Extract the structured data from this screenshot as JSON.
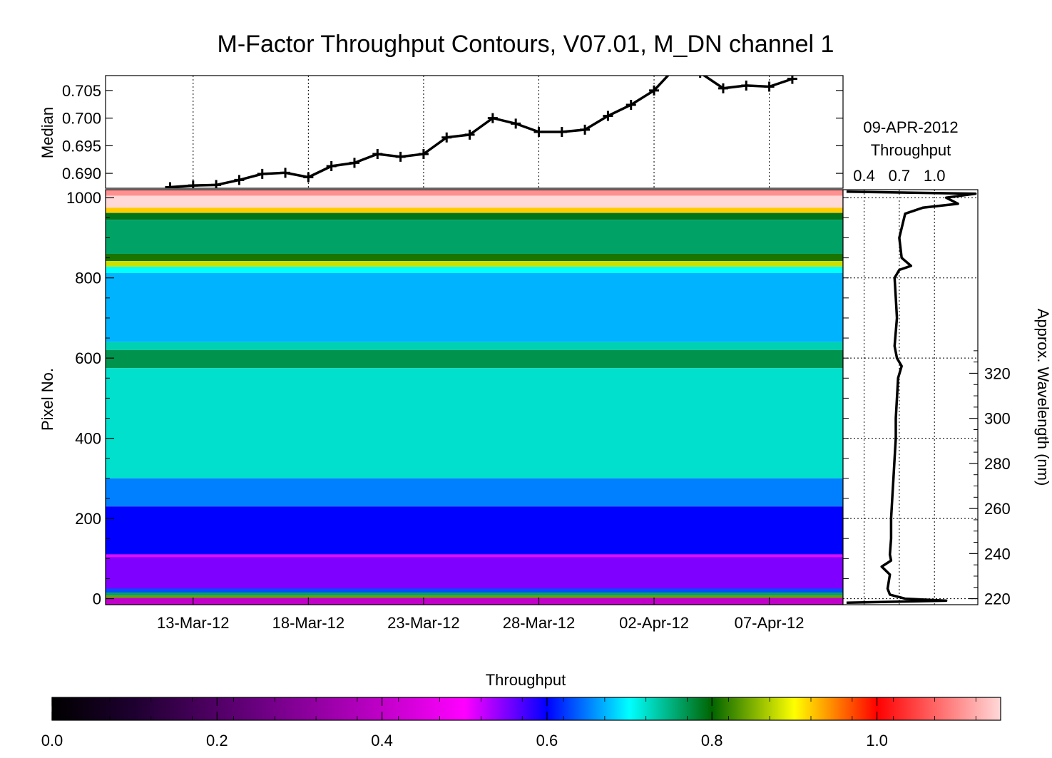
{
  "chart_data": [
    {
      "id": "median",
      "type": "line",
      "title": "M-Factor Throughput Contours, V07.01, M_DN channel 1",
      "ylabel": "Median",
      "ylim": [
        0.6873,
        0.7077
      ],
      "yticks": [
        "0.690",
        "0.695",
        "0.700",
        "0.705"
      ],
      "x_ticks": [
        "13-Mar-12",
        "18-Mar-12",
        "23-Mar-12",
        "28-Mar-12",
        "02-Apr-12",
        "07-Apr-12"
      ],
      "x_tick_days": [
        13,
        18,
        23,
        28,
        33,
        38
      ],
      "xlim_days": [
        9.2,
        41.2
      ],
      "grid": "dotted vertical at date ticks",
      "x_day": [
        12,
        13,
        14,
        15,
        16,
        17,
        18,
        19,
        20,
        21,
        22,
        23,
        24,
        25,
        26,
        27,
        28,
        29,
        30,
        31,
        32,
        33,
        34,
        35,
        36,
        37,
        38,
        39
      ],
      "values": [
        0.6875,
        0.6878,
        0.6879,
        0.6888,
        0.6899,
        0.6901,
        0.6893,
        0.6913,
        0.6919,
        0.6935,
        0.693,
        0.6935,
        0.6965,
        0.697,
        0.7,
        0.699,
        0.6975,
        0.6975,
        0.6979,
        0.7004,
        0.7024,
        0.705,
        0.7095,
        0.7082,
        0.7054,
        0.7059,
        0.7057,
        0.7071
      ]
    },
    {
      "id": "contours",
      "type": "heatmap",
      "ylabel": "Pixel No.",
      "ylim": [
        -15,
        1020
      ],
      "yticks": [
        "0",
        "200",
        "400",
        "600",
        "800",
        "1000"
      ],
      "x_ticks": [
        "13-Mar-12",
        "18-Mar-12",
        "23-Mar-12",
        "28-Mar-12",
        "02-Apr-12",
        "07-Apr-12"
      ],
      "value_range": [
        0.0,
        1.15
      ],
      "bands": [
        {
          "pixel": [
            1005,
            1020
          ],
          "value": 1.1
        },
        {
          "pixel": [
            975,
            1005
          ],
          "value": 1.15
        },
        {
          "pixel": [
            962,
            975
          ],
          "value": 0.92
        },
        {
          "pixel": [
            945,
            962
          ],
          "value": 0.79
        },
        {
          "pixel": [
            860,
            945
          ],
          "value": 0.76
        },
        {
          "pixel": [
            842,
            860
          ],
          "value": 0.81
        },
        {
          "pixel": [
            828,
            842
          ],
          "value": 0.88
        },
        {
          "pixel": [
            812,
            828
          ],
          "value": 0.7
        },
        {
          "pixel": [
            640,
            812
          ],
          "value": 0.67
        },
        {
          "pixel": [
            620,
            640
          ],
          "value": 0.73
        },
        {
          "pixel": [
            575,
            620
          ],
          "value": 0.77
        },
        {
          "pixel": [
            300,
            575
          ],
          "value": 0.72
        },
        {
          "pixel": [
            230,
            300
          ],
          "value": 0.65
        },
        {
          "pixel": [
            110,
            230
          ],
          "value": 0.6
        },
        {
          "pixel": [
            104,
            110
          ],
          "value": 0.5
        },
        {
          "pixel": [
            25,
            104
          ],
          "value": 0.55
        },
        {
          "pixel": [
            15,
            25
          ],
          "value": 0.63
        },
        {
          "pixel": [
            8,
            15
          ],
          "value": 0.76
        },
        {
          "pixel": [
            2,
            8
          ],
          "value": 0.84
        },
        {
          "pixel": [
            -15,
            2
          ],
          "value": 0.4
        }
      ]
    },
    {
      "id": "throughput_profile",
      "type": "line",
      "title": "09-APR-2012",
      "xlabel": "Throughput",
      "xticks": [
        "0.4",
        "0.7",
        "1.0"
      ],
      "xlim": [
        0.22,
        1.37
      ],
      "y2label": "Approx. Wavelength (nm)",
      "y2ticks": [
        "220",
        "240",
        "260",
        "280",
        "300",
        "320"
      ],
      "points": [
        [
          0.25,
          -10
        ],
        [
          1.1,
          -5
        ],
        [
          0.75,
          0
        ],
        [
          0.62,
          10
        ],
        [
          0.6,
          25
        ],
        [
          0.62,
          60
        ],
        [
          0.55,
          80
        ],
        [
          0.63,
          95
        ],
        [
          0.62,
          110
        ],
        [
          0.63,
          150
        ],
        [
          0.63,
          200
        ],
        [
          0.64,
          250
        ],
        [
          0.65,
          300
        ],
        [
          0.66,
          350
        ],
        [
          0.67,
          400
        ],
        [
          0.67,
          450
        ],
        [
          0.68,
          500
        ],
        [
          0.69,
          550
        ],
        [
          0.72,
          580
        ],
        [
          0.68,
          600
        ],
        [
          0.66,
          630
        ],
        [
          0.68,
          700
        ],
        [
          0.67,
          750
        ],
        [
          0.66,
          800
        ],
        [
          0.7,
          820
        ],
        [
          0.8,
          830
        ],
        [
          0.72,
          850
        ],
        [
          0.7,
          900
        ],
        [
          0.75,
          960
        ],
        [
          0.9,
          975
        ],
        [
          1.2,
          985
        ],
        [
          1.1,
          1000
        ],
        [
          1.35,
          1010
        ],
        [
          0.25,
          1015
        ]
      ]
    },
    {
      "id": "colorbar",
      "type": "heatmap",
      "title": "Throughput",
      "xticks": [
        "0.0",
        "0.2",
        "0.4",
        "0.6",
        "0.8",
        "1.0"
      ],
      "range": [
        0.0,
        1.15
      ],
      "stops": [
        [
          0.0,
          "#000000"
        ],
        [
          0.1,
          "#1e0030"
        ],
        [
          0.25,
          "#6a0080"
        ],
        [
          0.4,
          "#c000c8"
        ],
        [
          0.5,
          "#ff00ff"
        ],
        [
          0.6,
          "#0000ff"
        ],
        [
          0.7,
          "#00ffff"
        ],
        [
          0.8,
          "#006400"
        ],
        [
          0.9,
          "#ffff00"
        ],
        [
          1.0,
          "#ff0000"
        ],
        [
          1.15,
          "#ffd8d8"
        ]
      ]
    }
  ]
}
